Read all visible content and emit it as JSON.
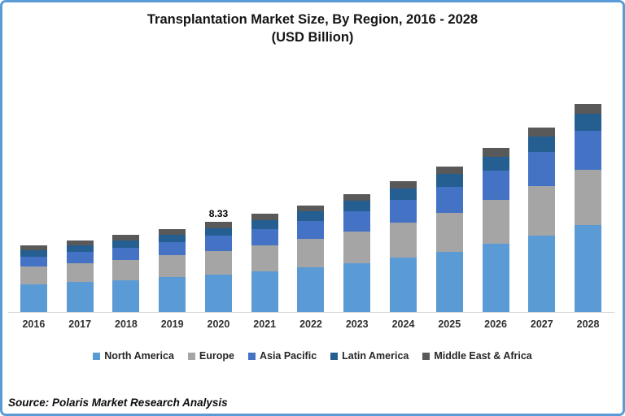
{
  "title": {
    "line1": "Transplantation Market Size, By Region, 2016 - 2028",
    "line2": "(USD Billion)"
  },
  "source": "Source: Polaris Market Research Analysis",
  "colors": {
    "frame_border": "#5B9BD5",
    "axis_line": "#D6D6D6",
    "title_text": "#141414",
    "axis_text": "#303030"
  },
  "chart_data": {
    "type": "bar",
    "stacked": true,
    "title": "Transplantation Market Size, By Region, 2016 - 2028 (USD Billion)",
    "unit": "USD Billion",
    "xlabel": "",
    "ylabel": "",
    "grid": false,
    "legend_position": "bottom",
    "categories": [
      "2016",
      "2017",
      "2018",
      "2019",
      "2020",
      "2021",
      "2022",
      "2023",
      "2024",
      "2025",
      "2026",
      "2027",
      "2028"
    ],
    "series": [
      {
        "name": "North America",
        "color": "#5B9BD5",
        "values": [
          2.56,
          2.76,
          2.95,
          3.2,
          3.44,
          3.77,
          4.1,
          4.53,
          5.02,
          5.59,
          6.3,
          7.08,
          8.01
        ]
      },
      {
        "name": "Europe",
        "color": "#A5A5A5",
        "values": [
          1.65,
          1.77,
          1.9,
          2.06,
          2.2,
          2.42,
          2.64,
          2.91,
          3.23,
          3.6,
          4.05,
          4.56,
          5.12
        ]
      },
      {
        "name": "Asia Pacific",
        "color": "#4472C4",
        "values": [
          0.93,
          1.02,
          1.12,
          1.23,
          1.43,
          1.51,
          1.68,
          1.89,
          2.13,
          2.41,
          2.77,
          3.17,
          3.63
        ]
      },
      {
        "name": "Latin America",
        "color": "#255E91",
        "values": [
          0.57,
          0.61,
          0.65,
          0.69,
          0.71,
          0.81,
          0.87,
          0.95,
          1.04,
          1.15,
          1.28,
          1.42,
          1.58
        ]
      },
      {
        "name": "Middle East & Africa",
        "color": "#595959",
        "values": [
          0.46,
          0.48,
          0.5,
          0.52,
          0.55,
          0.57,
          0.59,
          0.63,
          0.67,
          0.72,
          0.78,
          0.83,
          0.92
        ]
      }
    ],
    "totals": [
      6.17,
      6.64,
      7.12,
      7.7,
      8.33,
      9.08,
      9.88,
      10.91,
      12.09,
      13.47,
      15.18,
      17.06,
      19.26
    ],
    "data_label": {
      "category": "2020",
      "text": "8.33"
    }
  }
}
